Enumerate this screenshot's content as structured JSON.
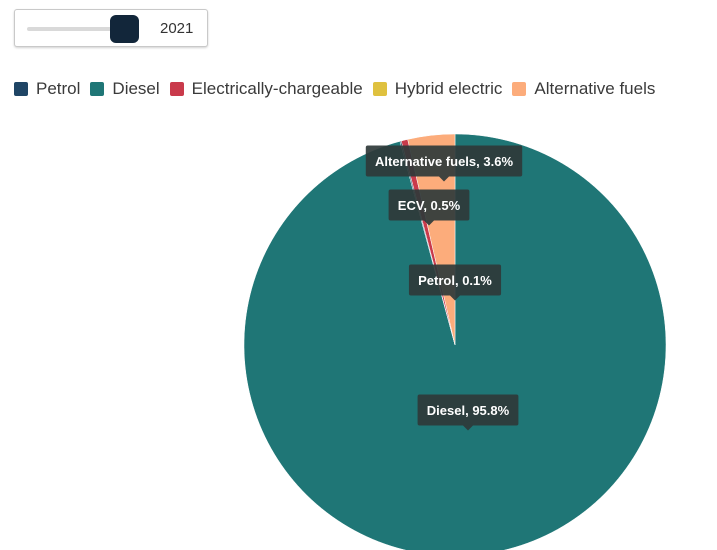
{
  "slider": {
    "value_label": "2021",
    "position": 0.85
  },
  "legend": [
    {
      "label": "Petrol",
      "color": "#1f4565"
    },
    {
      "label": "Diesel",
      "color": "#1f7676"
    },
    {
      "label": "Electrically-chargeable",
      "color": "#c93a4b"
    },
    {
      "label": "Hybrid electric",
      "color": "#dfc13f"
    },
    {
      "label": "Alternative fuels",
      "color": "#fcac7b"
    }
  ],
  "chart_data": {
    "type": "pie",
    "year": "2021",
    "slices": [
      {
        "name": "Diesel",
        "value": 95.8,
        "color": "#1f7676",
        "tooltip": "Diesel, 95.8%"
      },
      {
        "name": "Petrol",
        "value": 0.1,
        "color": "#1f4565",
        "tooltip": "Petrol, 0.1%"
      },
      {
        "name": "Electrically-chargeable",
        "value": 0.5,
        "color": "#c93a4b",
        "tooltip": "ECV, 0.5%"
      },
      {
        "name": "Alternative fuels",
        "value": 3.6,
        "color": "#fcac7b",
        "tooltip": "Alternative fuels, 3.6%"
      }
    ]
  }
}
